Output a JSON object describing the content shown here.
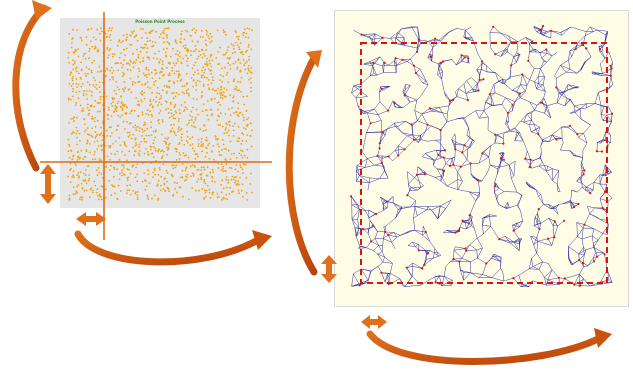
{
  "left_panel": {
    "title": "Poisson Point Process",
    "point_color": "#f2a20c",
    "background": "#e6e6e6",
    "point_count": 1600
  },
  "right_panel": {
    "edge_color": "#1d1d9e",
    "dash_color": "#e01010",
    "background": "#fffde6",
    "point_count": 950
  },
  "guides": {
    "line_color": "#e06a14",
    "arrow_color": "#c8520e"
  },
  "chart_data": [
    {
      "type": "scatter",
      "title": "Poisson Point Process",
      "xlabel": "",
      "ylabel": "",
      "grid": false
    },
    {
      "type": "scatter",
      "title": "",
      "xlabel": "",
      "ylabel": "",
      "xlim": [
        0,
        6
      ],
      "ylim": [
        0,
        6
      ]
    }
  ]
}
